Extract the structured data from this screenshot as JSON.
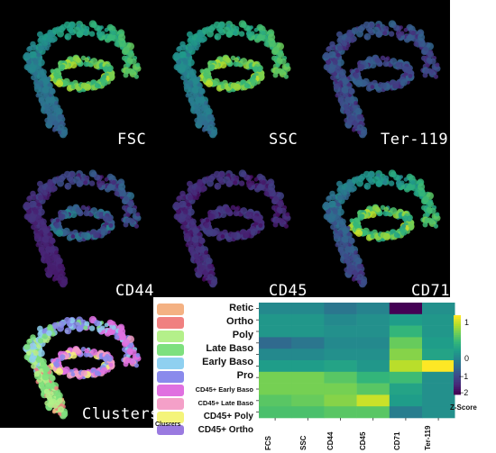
{
  "panels": [
    {
      "label": "FSC",
      "scheme": "fsc"
    },
    {
      "label": "SSC",
      "scheme": "ssc"
    },
    {
      "label": "Ter-119",
      "scheme": "ter"
    },
    {
      "label": "CD44",
      "scheme": "cd44"
    },
    {
      "label": "CD45",
      "scheme": "cd45"
    },
    {
      "label": "CD71",
      "scheme": "cd71"
    },
    {
      "label": "Clusters",
      "scheme": "clusters"
    }
  ],
  "legend": {
    "title": "Clusrers",
    "items": [
      {
        "label": "Retic",
        "color": "#f4b183"
      },
      {
        "label": "Ortho",
        "color": "#f08080"
      },
      {
        "label": "Poly",
        "color": "#b4f08a"
      },
      {
        "label": "Late Baso",
        "color": "#7ee07e"
      },
      {
        "label": "Early Baso",
        "color": "#8fd0f0"
      },
      {
        "label": "Pro",
        "color": "#8a8aec"
      },
      {
        "label": "CD45+ Early Baso",
        "color": "#e070e0"
      },
      {
        "label": "CD45+ Late Baso",
        "color": "#f4a0c8"
      },
      {
        "label": "CD45+ Poly",
        "color": "#f4f47a"
      },
      {
        "label": "CD45+ Ortho",
        "color": "#9a7ae0"
      }
    ]
  },
  "chart_data": {
    "type": "heatmap",
    "rows": [
      "Retic",
      "Ortho",
      "Poly",
      "Late Baso",
      "Early Baso",
      "Pro",
      "CD45+ Early Baso",
      "CD45+ Late Baso",
      "CD45+ Poly",
      "CD45+ Ortho"
    ],
    "columns": [
      "FCS",
      "SSC",
      "CD44",
      "CD45",
      "CD71",
      "Ter-119"
    ],
    "values": [
      [
        -0.5,
        -0.5,
        -0.8,
        -0.6,
        -2.3,
        -0.4
      ],
      [
        -0.3,
        -0.3,
        -0.5,
        -0.4,
        -0.2,
        -0.3
      ],
      [
        -0.3,
        -0.3,
        -0.4,
        -0.4,
        0.2,
        -0.3
      ],
      [
        -1.0,
        -0.8,
        -0.5,
        -0.5,
        0.6,
        -0.2
      ],
      [
        -0.5,
        -0.5,
        -0.4,
        -0.4,
        0.8,
        -0.1
      ],
      [
        -0.2,
        -0.2,
        -0.1,
        -0.3,
        1.1,
        1.5
      ],
      [
        0.7,
        0.7,
        0.5,
        0.2,
        0.3,
        -0.4
      ],
      [
        0.7,
        0.7,
        0.7,
        0.5,
        -0.1,
        -0.4
      ],
      [
        0.5,
        0.6,
        0.8,
        1.2,
        -0.2,
        -0.4
      ],
      [
        0.4,
        0.4,
        0.5,
        0.5,
        -0.7,
        -0.4
      ]
    ],
    "colorbar": {
      "label": "Z-Score",
      "ticks": [
        "1",
        "0",
        "−1",
        "−2"
      ],
      "range": [
        -2.3,
        1.5
      ]
    }
  }
}
